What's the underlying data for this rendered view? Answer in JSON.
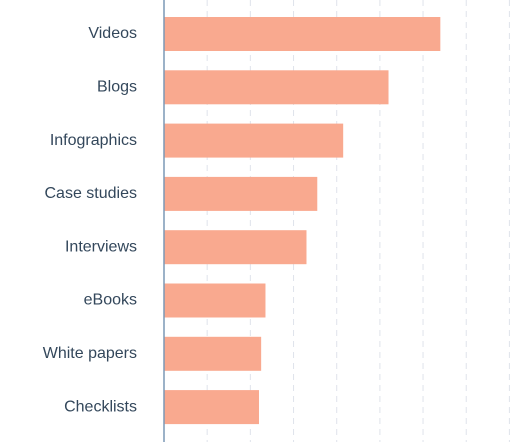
{
  "chart_data": {
    "type": "bar",
    "orientation": "horizontal",
    "categories": [
      "Videos",
      "Blogs",
      "Infographics",
      "Case studies",
      "Interviews",
      "eBooks",
      "White papers",
      "Checklists"
    ],
    "values": [
      6.4,
      5.2,
      4.15,
      3.55,
      3.3,
      2.35,
      2.25,
      2.2
    ],
    "color": "#f9a98f",
    "xlim": [
      0,
      8.5
    ],
    "xticks": [
      1,
      2,
      3,
      4,
      5,
      6,
      7,
      8
    ],
    "grid": true
  }
}
